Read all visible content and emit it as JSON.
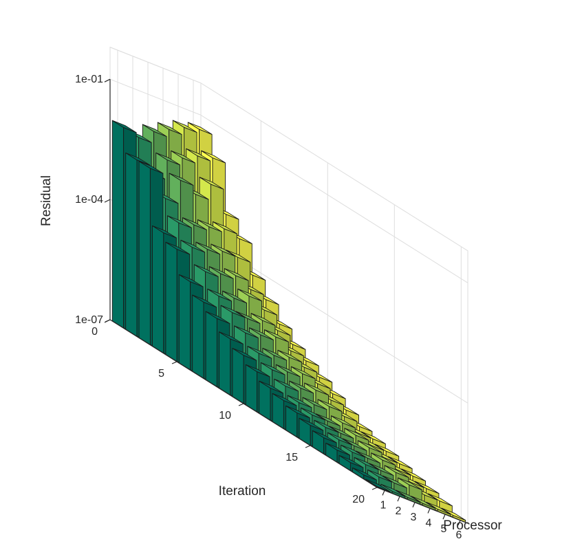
{
  "chart_data": {
    "type": "bar3",
    "title": "",
    "xlabel": "Processor",
    "ylabel": "Iteration",
    "zlabel": "Residual",
    "zscale": "log",
    "zlim": [
      1e-07,
      0.1
    ],
    "grid": true,
    "x_ticks": [
      "1",
      "2",
      "3",
      "4",
      "5",
      "6"
    ],
    "y_ticks": [
      "0",
      "5",
      "10",
      "15",
      "20"
    ],
    "z_ticks": [
      "1e-07",
      "1e-04",
      "1e-01"
    ],
    "colors": [
      "#00715f",
      "#2a9a68",
      "#62b05c",
      "#9ccf55",
      "#d4e84c",
      "#ffff50"
    ],
    "processors": [
      1,
      2,
      3,
      4,
      5,
      6
    ],
    "iterations": [
      1,
      2,
      3,
      4,
      5,
      6,
      7,
      8,
      9,
      10,
      11,
      12,
      13,
      14,
      15,
      16,
      17,
      18,
      19,
      20
    ],
    "series": [
      {
        "processor": 1,
        "log10_residual": [
          -2.0,
          -2.6,
          -2.6,
          -4.0,
          -4.2,
          -4.8,
          -5.1,
          -5.3,
          -5.6,
          -5.8,
          -6.0,
          -6.2,
          -6.3,
          -6.4,
          -6.5,
          -6.6,
          -6.7,
          -6.8,
          -6.9,
          -7.0
        ]
      },
      {
        "processor": 2,
        "log10_residual": [
          -2.1,
          -2.8,
          -3.2,
          -3.6,
          -4.0,
          -4.4,
          -4.8,
          -5.0,
          -5.3,
          -5.6,
          -5.8,
          -6.0,
          -6.2,
          -6.3,
          -6.4,
          -6.5,
          -6.6,
          -6.7,
          -6.8,
          -6.95
        ]
      },
      {
        "processor": 3,
        "log10_residual": [
          -1.8,
          -2.3,
          -2.6,
          -3.5,
          -3.9,
          -4.3,
          -4.7,
          -5.0,
          -5.2,
          -5.5,
          -5.7,
          -5.9,
          -6.1,
          -6.3,
          -6.4,
          -6.5,
          -6.6,
          -6.7,
          -6.8,
          -6.95
        ]
      },
      {
        "processor": 4,
        "log10_residual": [
          -1.6,
          -2.1,
          -2.8,
          -3.4,
          -3.8,
          -4.2,
          -4.5,
          -4.9,
          -5.1,
          -5.4,
          -5.6,
          -5.8,
          -6.0,
          -6.2,
          -6.3,
          -6.4,
          -6.5,
          -6.6,
          -6.7,
          -6.95
        ]
      },
      {
        "processor": 5,
        "log10_residual": [
          -1.4,
          -1.9,
          -2.4,
          -3.3,
          -3.8,
          -4.4,
          -4.7,
          -5.0,
          -5.3,
          -5.5,
          -5.7,
          -5.9,
          -6.1,
          -6.3,
          -6.4,
          -6.5,
          -6.6,
          -6.7,
          -6.8,
          -6.95
        ]
      },
      {
        "processor": 6,
        "log10_residual": [
          -1.3,
          -1.8,
          -3.0,
          -3.4,
          -4.1,
          -4.5,
          -4.9,
          -5.2,
          -5.4,
          -5.6,
          -5.8,
          -6.0,
          -6.2,
          -6.3,
          -6.4,
          -6.5,
          -6.6,
          -6.7,
          -6.8,
          -6.95
        ]
      }
    ]
  }
}
